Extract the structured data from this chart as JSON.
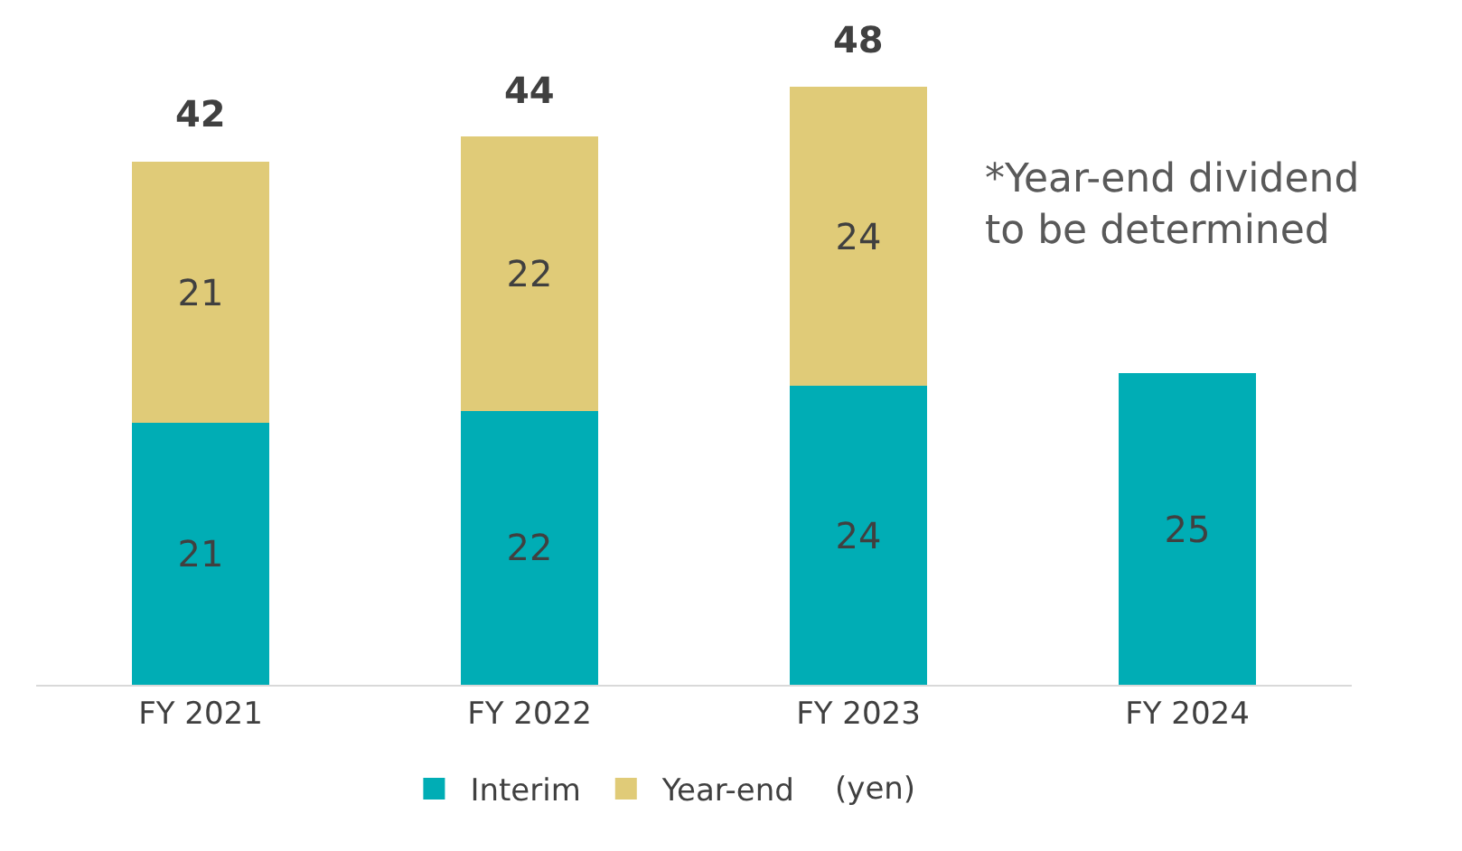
{
  "chart_data": {
    "type": "bar",
    "stacked": true,
    "categories": [
      "FY 2021",
      "FY 2022",
      "FY 2023",
      "FY 2024"
    ],
    "series": [
      {
        "name": "Interim",
        "color": "#00adb5",
        "values": [
          21,
          22,
          24,
          25
        ]
      },
      {
        "name": "Year-end",
        "color": "#e0cb78",
        "values": [
          21,
          22,
          24,
          null
        ]
      }
    ],
    "data_labels": true,
    "totals": [
      "42",
      "44",
      "48",
      null
    ],
    "legend": "bottom",
    "annotations": [
      "*Year-end dividend\nto be determined",
      "(yen)"
    ]
  }
}
